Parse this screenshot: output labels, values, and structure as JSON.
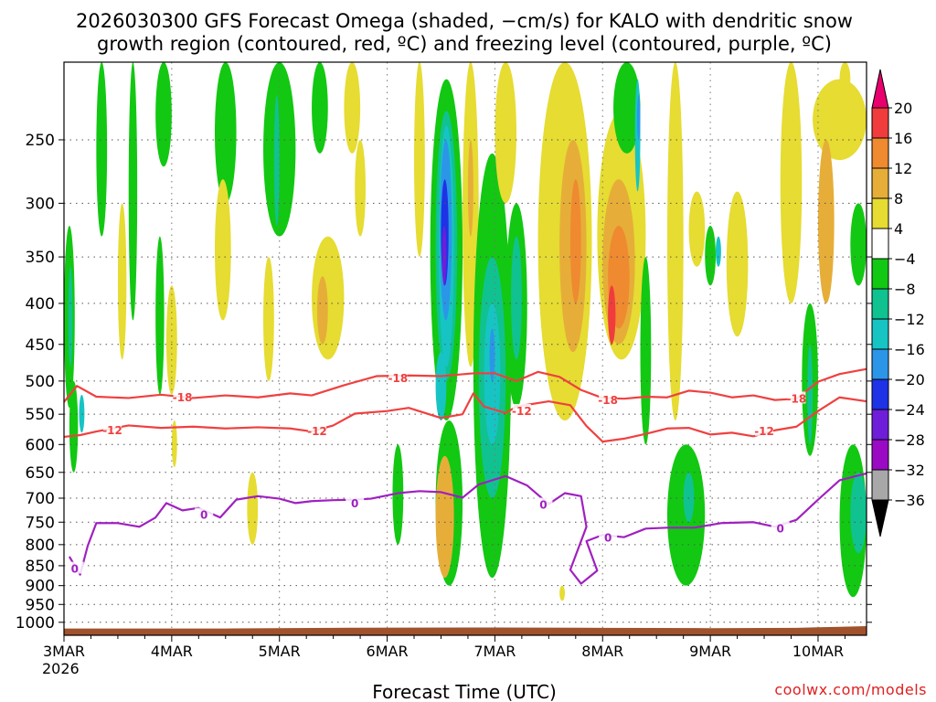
{
  "chart_data": {
    "type": "heatmap",
    "title_line1": "2026030300 GFS Forecast Omega (shaded, −cm/s) for KALO with dendritic snow",
    "title_line2": "growth region (contoured, red, ºC) and freezing level (contoured, purple, ºC)",
    "xlabel": "Forecast Time (UTC)",
    "credit": "coolwx.com/models",
    "y_axis_scale": "log-pressure",
    "y_range_hpa": [
      1038,
      200
    ],
    "y_ticks": [
      250,
      300,
      350,
      400,
      450,
      500,
      550,
      600,
      650,
      700,
      750,
      800,
      850,
      900,
      950,
      1000
    ],
    "x_range_days": [
      0,
      7.45
    ],
    "x_ticks": [
      {
        "day": 0,
        "label": "3MAR",
        "sub": "2026"
      },
      {
        "day": 1,
        "label": "4MAR"
      },
      {
        "day": 2,
        "label": "5MAR"
      },
      {
        "day": 3,
        "label": "6MAR"
      },
      {
        "day": 4,
        "label": "7MAR"
      },
      {
        "day": 5,
        "label": "8MAR"
      },
      {
        "day": 6,
        "label": "9MAR"
      },
      {
        "day": 7,
        "label": "10MAR"
      }
    ],
    "grid": "dotted",
    "colorbar": {
      "levels": [
        -36,
        -32,
        -28,
        -24,
        -20,
        -16,
        -12,
        -8,
        -4,
        4,
        8,
        12,
        16,
        20
      ],
      "labels": [
        "20",
        "16",
        "12",
        "8",
        "4",
        "−4",
        "−8",
        "−12",
        "−16",
        "−20",
        "−24",
        "−28",
        "−32",
        "−36"
      ],
      "bands_top_to_bottom": [
        {
          "range": "above 20",
          "color": "#e8006e"
        },
        {
          "range": "16 to 20",
          "color": "#f03c3c"
        },
        {
          "range": "12 to 16",
          "color": "#ef8a30"
        },
        {
          "range": "8 to 12",
          "color": "#e6ae38"
        },
        {
          "range": "4 to 8",
          "color": "#e6dc32"
        },
        {
          "range": "-4 to 4",
          "color": "#ffffff"
        },
        {
          "range": "-8 to -4",
          "color": "#12c812"
        },
        {
          "range": "-12 to -8",
          "color": "#10c290"
        },
        {
          "range": "-16 to -12",
          "color": "#17c4c4"
        },
        {
          "range": "-20 to -16",
          "color": "#2b96e8"
        },
        {
          "range": "-24 to -20",
          "color": "#1e32e6"
        },
        {
          "range": "-28 to -24",
          "color": "#6e1ed8"
        },
        {
          "range": "-32 to -28",
          "color": "#9a0ac4"
        },
        {
          "range": "-36 to -32",
          "color": "#a8a8a8"
        },
        {
          "range": "below -36",
          "color": "#000000"
        }
      ]
    },
    "ground_color": "#a0522d",
    "ground": [
      {
        "day": 0,
        "hpa": 1018
      },
      {
        "day": 1.5,
        "hpa": 1018
      },
      {
        "day": 2.5,
        "hpa": 1016
      },
      {
        "day": 4,
        "hpa": 1015
      },
      {
        "day": 5,
        "hpa": 1016
      },
      {
        "day": 6,
        "hpa": 1017
      },
      {
        "day": 6.8,
        "hpa": 1016
      },
      {
        "day": 7.2,
        "hpa": 1013
      },
      {
        "day": 7.45,
        "hpa": 1011
      }
    ],
    "contours": [
      {
        "name": "-18",
        "color": "#f04040",
        "labels": [
          {
            "day": 1.1,
            "hpa": 523,
            "text": "-18"
          },
          {
            "day": 3.1,
            "hpa": 495,
            "text": "-18"
          },
          {
            "day": 5.05,
            "hpa": 527,
            "text": "-18"
          },
          {
            "day": 6.8,
            "hpa": 525,
            "text": "-18"
          }
        ],
        "points": [
          [
            0,
            531
          ],
          [
            0.12,
            507
          ],
          [
            0.3,
            523
          ],
          [
            0.6,
            525
          ],
          [
            0.9,
            520
          ],
          [
            1.2,
            525
          ],
          [
            1.5,
            521
          ],
          [
            1.8,
            524
          ],
          [
            2.1,
            518
          ],
          [
            2.3,
            521
          ],
          [
            2.6,
            506
          ],
          [
            2.9,
            493
          ],
          [
            3.2,
            492
          ],
          [
            3.5,
            493
          ],
          [
            3.8,
            489
          ],
          [
            4.0,
            489
          ],
          [
            4.2,
            500
          ],
          [
            4.4,
            487
          ],
          [
            4.6,
            494
          ],
          [
            4.8,
            513
          ],
          [
            5.0,
            525
          ],
          [
            5.2,
            526
          ],
          [
            5.4,
            523
          ],
          [
            5.6,
            524
          ],
          [
            5.8,
            514
          ],
          [
            6.0,
            517
          ],
          [
            6.2,
            524
          ],
          [
            6.4,
            521
          ],
          [
            6.6,
            528
          ],
          [
            6.8,
            526
          ],
          [
            7.0,
            501
          ],
          [
            7.2,
            490
          ],
          [
            7.45,
            483
          ]
        ]
      },
      {
        "name": "-12",
        "color": "#f04040",
        "labels": [
          {
            "day": 0.45,
            "hpa": 575,
            "text": "-12"
          },
          {
            "day": 2.35,
            "hpa": 576,
            "text": "-12"
          },
          {
            "day": 4.25,
            "hpa": 544,
            "text": "-12"
          },
          {
            "day": 6.5,
            "hpa": 576,
            "text": "-12"
          }
        ],
        "points": [
          [
            0,
            587
          ],
          [
            0.15,
            584
          ],
          [
            0.3,
            578
          ],
          [
            0.6,
            568
          ],
          [
            0.9,
            572
          ],
          [
            1.2,
            570
          ],
          [
            1.5,
            573
          ],
          [
            1.8,
            571
          ],
          [
            2.1,
            573
          ],
          [
            2.3,
            578
          ],
          [
            2.5,
            568
          ],
          [
            2.7,
            549
          ],
          [
            3.0,
            545
          ],
          [
            3.2,
            540
          ],
          [
            3.5,
            556
          ],
          [
            3.7,
            550
          ],
          [
            3.8,
            518
          ],
          [
            3.9,
            538
          ],
          [
            4.1,
            548
          ],
          [
            4.2,
            538
          ],
          [
            4.5,
            530
          ],
          [
            4.7,
            536
          ],
          [
            4.85,
            569
          ],
          [
            5.0,
            595
          ],
          [
            5.2,
            590
          ],
          [
            5.4,
            582
          ],
          [
            5.6,
            573
          ],
          [
            5.8,
            572
          ],
          [
            6.0,
            583
          ],
          [
            6.2,
            580
          ],
          [
            6.4,
            586
          ],
          [
            6.6,
            576
          ],
          [
            6.8,
            570
          ],
          [
            7.0,
            545
          ],
          [
            7.2,
            524
          ],
          [
            7.45,
            530
          ]
        ]
      },
      {
        "name": "0",
        "color": "#a020c0",
        "labels": [
          {
            "day": 0.1,
            "hpa": 856,
            "text": "0"
          },
          {
            "day": 1.3,
            "hpa": 733,
            "text": "0"
          },
          {
            "day": 2.7,
            "hpa": 709,
            "text": "0"
          },
          {
            "day": 4.45,
            "hpa": 712,
            "text": "0"
          },
          {
            "day": 5.05,
            "hpa": 783,
            "text": "0"
          },
          {
            "day": 6.65,
            "hpa": 762,
            "text": "0"
          }
        ],
        "points": [
          [
            0.05,
            828
          ],
          [
            0.15,
            872
          ],
          [
            0.22,
            803
          ],
          [
            0.3,
            752
          ],
          [
            0.5,
            752
          ],
          [
            0.7,
            760
          ],
          [
            0.85,
            740
          ],
          [
            0.95,
            710
          ],
          [
            1.1,
            725
          ],
          [
            1.25,
            720
          ],
          [
            1.45,
            740
          ],
          [
            1.6,
            703
          ],
          [
            1.8,
            696
          ],
          [
            2.0,
            701
          ],
          [
            2.15,
            710
          ],
          [
            2.3,
            706
          ],
          [
            2.5,
            704
          ],
          [
            2.7,
            703
          ],
          [
            2.85,
            701
          ],
          [
            3.1,
            690
          ],
          [
            3.3,
            686
          ],
          [
            3.5,
            688
          ],
          [
            3.7,
            699
          ],
          [
            3.85,
            673
          ],
          [
            4.1,
            657
          ],
          [
            4.3,
            675
          ],
          [
            4.5,
            712
          ],
          [
            4.65,
            690
          ],
          [
            4.8,
            696
          ],
          [
            4.85,
            760
          ],
          [
            4.7,
            860
          ],
          [
            4.8,
            895
          ],
          [
            4.95,
            862
          ],
          [
            4.85,
            792
          ],
          [
            5.0,
            778
          ],
          [
            5.2,
            783
          ],
          [
            5.4,
            764
          ],
          [
            5.6,
            762
          ],
          [
            5.85,
            762
          ],
          [
            6.1,
            752
          ],
          [
            6.4,
            750
          ],
          [
            6.6,
            760
          ],
          [
            6.8,
            745
          ],
          [
            7.0,
            703
          ],
          [
            7.2,
            665
          ],
          [
            7.45,
            652
          ]
        ]
      }
    ]
  }
}
